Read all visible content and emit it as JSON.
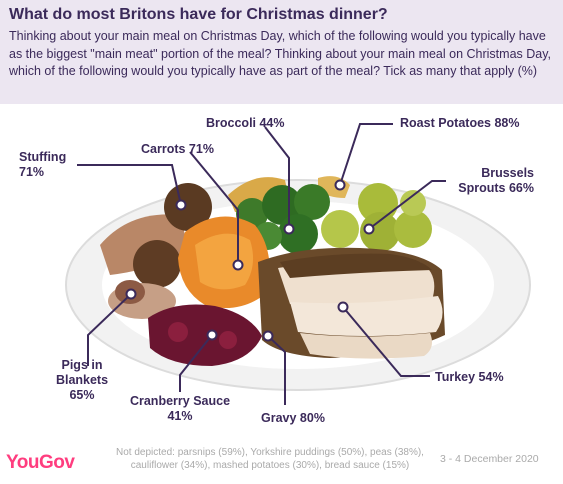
{
  "header": {
    "title": "What do most Britons have for Christmas dinner?",
    "subtitle": "Thinking about your main meal on Christmas Day, which of the following would you typically have as the biggest \"main meat\" portion of the meal? Thinking about your main meal on Christmas Day, which of the following would you typically have as part of the meal? Tick as many that apply (%)"
  },
  "chart_data": {
    "type": "annotated-image",
    "items": [
      {
        "name": "Broccoli",
        "value": 44,
        "label": "Broccoli 44%"
      },
      {
        "name": "Roast Potatoes",
        "value": 88,
        "label": "Roast Potatoes 88%"
      },
      {
        "name": "Carrots",
        "value": 71,
        "label": "Carrots 71%"
      },
      {
        "name": "Stuffing",
        "value": 71,
        "label_line1": "Stuffing",
        "label_line2": "71%"
      },
      {
        "name": "Brussels Sprouts",
        "value": 66,
        "label_line1": "Brussels",
        "label_line2": "Sprouts 66%"
      },
      {
        "name": "Pigs in Blankets",
        "value": 65,
        "label_line1": "Pigs in",
        "label_line2": "Blankets",
        "label_line3": "65%"
      },
      {
        "name": "Turkey",
        "value": 54,
        "label": "Turkey 54%"
      },
      {
        "name": "Cranberry Sauce",
        "value": 41,
        "label_line1": "Cranberry Sauce",
        "label_line2": "41%"
      },
      {
        "name": "Gravy",
        "value": 80,
        "label": "Gravy 80%"
      }
    ]
  },
  "footer": {
    "logo": "YouGov",
    "footnote_line1": "Not depicted: parsnips (59%), Yorkshire puddings (50%), peas (38%),",
    "footnote_line2": "cauliflower (34%), mashed potatoes (30%), bread sauce (15%)",
    "date": "3 - 4 December 2020"
  },
  "colors": {
    "header_bg": "#ece6f1",
    "text": "#3b2a5a",
    "brand": "#ff3d7f",
    "muted": "#aaaaaa"
  }
}
